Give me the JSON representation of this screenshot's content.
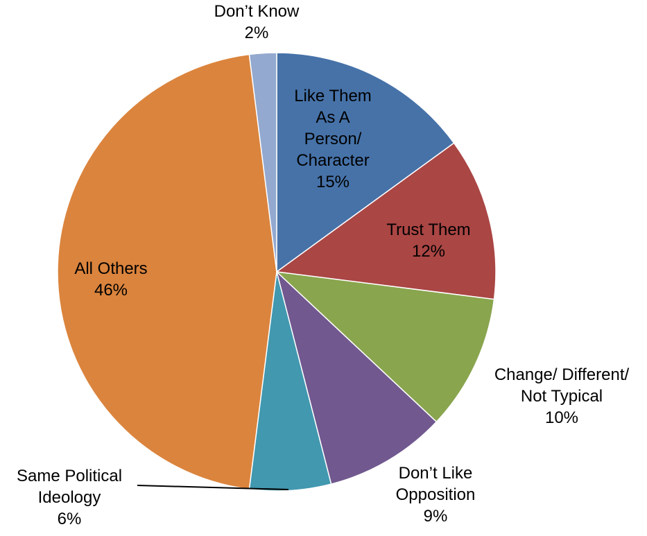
{
  "chart_data": {
    "type": "pie",
    "title": "",
    "start_angle_deg": 0,
    "direction": "clockwise",
    "legend": "none",
    "slices": [
      {
        "label_lines": [
          "Like Them",
          "As A",
          "Person/",
          "Character"
        ],
        "value": 15,
        "value_label": "15%",
        "color": "#4672A8"
      },
      {
        "label_lines": [
          "Trust Them"
        ],
        "value": 12,
        "value_label": "12%",
        "color": "#AA4644"
      },
      {
        "label_lines": [
          "Change/ Different/",
          "Not Typical"
        ],
        "value": 10,
        "value_label": "10%",
        "color": "#89A54E"
      },
      {
        "label_lines": [
          "Don’t Like",
          "Opposition"
        ],
        "value": 9,
        "value_label": "9%",
        "color": "#71588F"
      },
      {
        "label_lines": [
          "Same Political",
          "Ideology"
        ],
        "value": 6,
        "value_label": "6%",
        "color": "#4198AF"
      },
      {
        "label_lines": [
          "All Others"
        ],
        "value": 46,
        "value_label": "46%",
        "color": "#DB843D"
      },
      {
        "label_lines": [
          "Don’t Know"
        ],
        "value": 2,
        "value_label": "2%",
        "color": "#93A9CF"
      }
    ]
  }
}
